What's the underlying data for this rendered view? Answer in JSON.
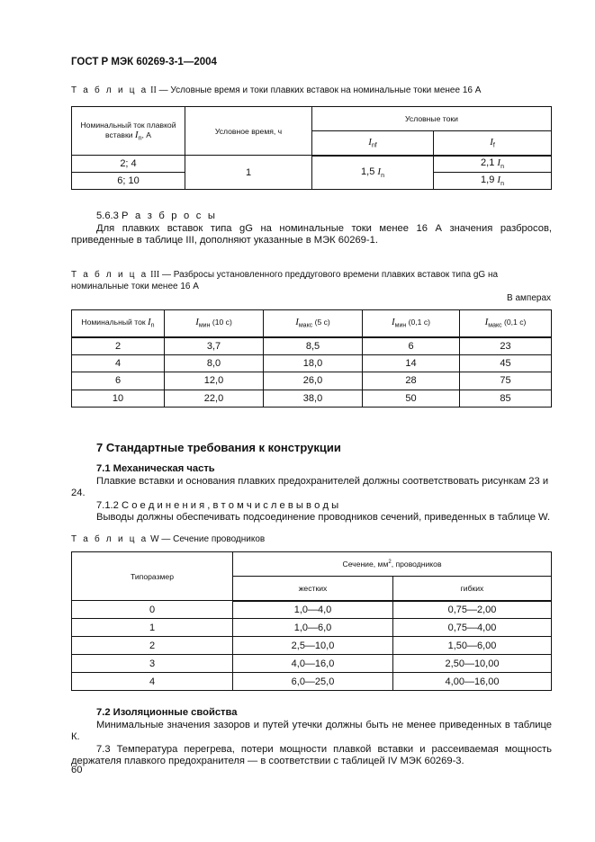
{
  "header": "ГОСТ Р МЭК 60269-3-1—2004",
  "table2": {
    "caption_label": "Т а б л и ц а",
    "caption_num": "II",
    "caption_text": " — Условные время и токи плавких вставок на номинальные токи менее 16 А",
    "col1": {
      "pre": "Номинальный ток плавкой вставки ",
      "sym": "I",
      "sub": "n",
      "post": ", А"
    },
    "col2": "Условное время, ч",
    "col3": "Условные токи",
    "col3a": {
      "sym": "I",
      "sub": "nf"
    },
    "col3b": {
      "sym": "I",
      "sub": "f"
    },
    "rows": [
      {
        "current": "2; 4",
        "time": "1",
        "inf_pre": "1,5 ",
        "inf_sym": "I",
        "inf_sub": "n",
        "if_pre": "2,1 ",
        "if_sym": "I",
        "if_sub": "n"
      },
      {
        "current": "6; 10",
        "if_pre": "1,9 ",
        "if_sym": "I",
        "if_sub": "n"
      }
    ]
  },
  "s563": {
    "num": "5.6.3 ",
    "title": "Р а з б р о с ы",
    "text": "Для плавких вставок типа gG на номинальные токи менее 16 А значения разбросов, приведенные в таблице III, дополняют указанные в МЭК 60269-1."
  },
  "table3": {
    "caption_label": "Т а б л и ц а",
    "caption_num": "III",
    "caption_text": " — Разбросы установленного преддугового времени плавких вставок типа gG на номинальные токи менее 16 А",
    "unit": "В амперах",
    "headers": [
      {
        "pre": "Номинальный ток  ",
        "sym": "I",
        "sub": "n",
        "post": ""
      },
      {
        "pre": "",
        "sym": "I",
        "sub": "мин",
        "post": " (10 с)"
      },
      {
        "pre": "",
        "sym": "I",
        "sub": "макс",
        "post": " (5 с)"
      },
      {
        "pre": "",
        "sym": "I",
        "sub": "мин",
        "post": " (0,1 с)"
      },
      {
        "pre": "",
        "sym": "I",
        "sub": "макс",
        "post": " (0,1 с)"
      }
    ],
    "rows": [
      [
        "2",
        "3,7",
        "8,5",
        "6",
        "23"
      ],
      [
        "4",
        "8,0",
        "18,0",
        "14",
        "45"
      ],
      [
        "6",
        "12,0",
        "26,0",
        "28",
        "75"
      ],
      [
        "10",
        "22,0",
        "38,0",
        "50",
        "85"
      ]
    ]
  },
  "s7": {
    "heading": "7  Стандартные требования к конструкции",
    "s71_heading": "7.1  Механическая часть",
    "s71_text": "Плавкие вставки и основания плавких предохранителей должны соответствовать рисункам 23 и 24.",
    "s712_num": "7.1.2 ",
    "s712_title": "С о е д и н е н и я ,   в   т о м   ч и с л е   в ы в о д ы",
    "s712_text": "Выводы должны обеспечивать подсоединение проводников сечений, приведенных в таблице W."
  },
  "tableW": {
    "caption_label": "Т а б л и ц а",
    "caption_text": " W — Сечение проводников",
    "col1": "Типоразмер",
    "col2_pre": "Сечение, мм",
    "col2_sup": "2",
    "col2_post": ", проводников",
    "col2a": "жестких",
    "col2b": "гибких",
    "rows": [
      [
        "0",
        "1,0—4,0",
        "0,75—2,00"
      ],
      [
        "1",
        "1,0—6,0",
        "0,75—4,00"
      ],
      [
        "2",
        "2,5—10,0",
        "1,50—6,00"
      ],
      [
        "3",
        "4,0—16,0",
        "2,50—10,00"
      ],
      [
        "4",
        "6,0—25,0",
        "4,00—16,00"
      ]
    ]
  },
  "s72": {
    "heading": "7.2  Изоляционные свойства",
    "text1": "Минимальные значения зазоров и путей утечки должны быть не менее приведенных в таблице К.",
    "text2": "7.3 Температура перегрева, потери мощности плавкой вставки и рассеиваемая мощность держателя плавкого предохранителя — в соответствии с таблицей IV МЭК 60269-3."
  },
  "page_number": "60"
}
